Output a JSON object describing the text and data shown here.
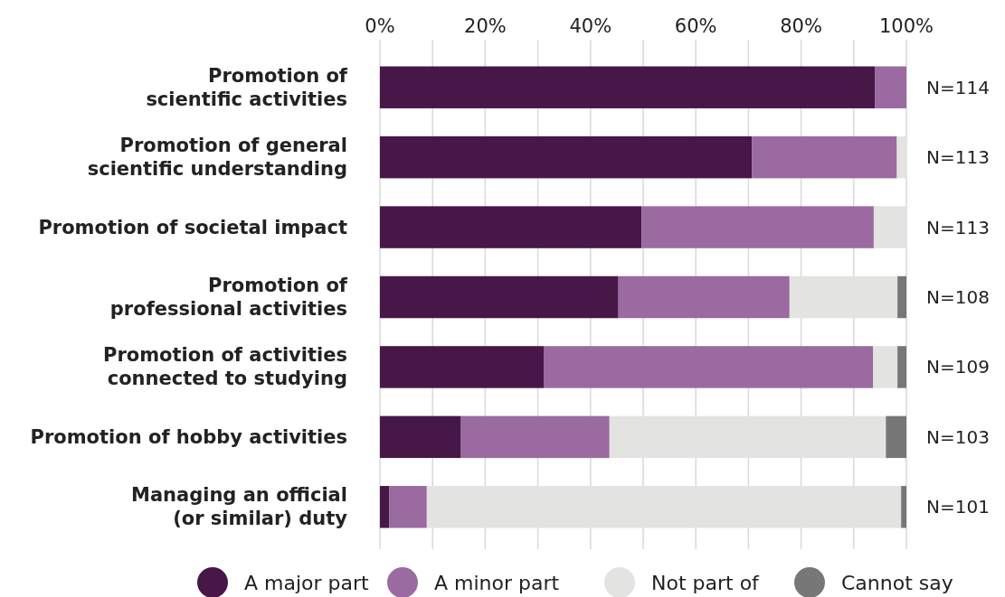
{
  "chart_data": {
    "type": "bar",
    "orientation": "horizontal",
    "stacked": true,
    "categories": [
      "Promotion of\nscientific activities",
      "Promotion of general\nscientific understanding",
      "Promotion of societal impact",
      "Promotion of\nprofessional activities",
      "Promotion of activities\nconnected to studying",
      "Promotion of hobby activities",
      "Managing an official\n(or similar) duty"
    ],
    "series": [
      {
        "name": "A major part",
        "color": "#471747",
        "values": [
          94.0,
          70.7,
          49.7,
          45.3,
          31.1,
          15.4,
          1.8
        ]
      },
      {
        "name": "A minor part",
        "color": "#9a6aa0",
        "values": [
          6.0,
          27.5,
          44.1,
          32.5,
          62.6,
          28.2,
          7.1
        ]
      },
      {
        "name": "Not part of",
        "color": "#e3e3e1",
        "values": [
          0,
          1.8,
          6.2,
          20.5,
          4.6,
          52.5,
          90.1
        ]
      },
      {
        "name": "Cannot say",
        "color": "#777777",
        "values": [
          0,
          0,
          0,
          1.7,
          1.7,
          3.9,
          1.0
        ]
      }
    ],
    "xlim": [
      0,
      100
    ],
    "xticks": [
      {
        "value": 0,
        "label": "0%"
      },
      {
        "value": 10,
        "label": null
      },
      {
        "value": 20,
        "label": "20%"
      },
      {
        "value": 30,
        "label": null
      },
      {
        "value": 40,
        "label": "40%"
      },
      {
        "value": 50,
        "label": null
      },
      {
        "value": 60,
        "label": "60%"
      },
      {
        "value": 70,
        "label": null
      },
      {
        "value": 80,
        "label": "80%"
      },
      {
        "value": 90,
        "label": null
      },
      {
        "value": 100,
        "label": "100%"
      }
    ],
    "grid": "x",
    "legend": "bottom",
    "annotations": [
      "N=114",
      "N=113",
      "N=113",
      "N=108",
      "N=109",
      "N=103",
      "N=101"
    ]
  }
}
